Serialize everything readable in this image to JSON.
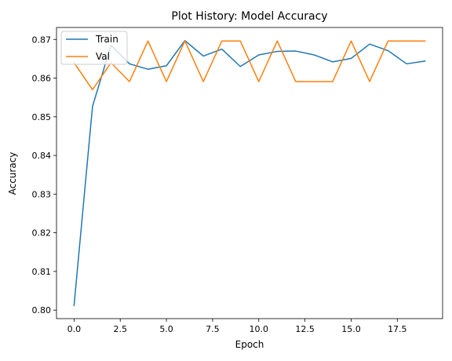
{
  "chart_data": {
    "type": "line",
    "title": "Plot History: Model Accuracy",
    "xlabel": "Epoch",
    "ylabel": "Accuracy",
    "xlim": [
      -0.95,
      19.95
    ],
    "ylim": [
      0.7978,
      0.8731
    ],
    "xticks": [
      0.0,
      2.5,
      5.0,
      7.5,
      10.0,
      12.5,
      15.0,
      17.5
    ],
    "xtick_labels": [
      "0.0",
      "2.5",
      "5.0",
      "7.5",
      "10.0",
      "12.5",
      "15.0",
      "17.5"
    ],
    "yticks": [
      0.8,
      0.81,
      0.82,
      0.83,
      0.84,
      0.85,
      0.86,
      0.87
    ],
    "ytick_labels": [
      "0.80",
      "0.81",
      "0.82",
      "0.83",
      "0.84",
      "0.85",
      "0.86",
      "0.87"
    ],
    "grid": false,
    "legend": "top-left",
    "x": [
      0,
      1,
      2,
      3,
      4,
      5,
      6,
      7,
      8,
      9,
      10,
      11,
      12,
      13,
      14,
      15,
      16,
      17,
      18,
      19
    ],
    "series": [
      {
        "name": "Train",
        "color": "#1f77b4",
        "values": [
          0.8012,
          0.8527,
          0.8685,
          0.8637,
          0.8623,
          0.8632,
          0.8697,
          0.8657,
          0.8675,
          0.863,
          0.866,
          0.8669,
          0.867,
          0.866,
          0.8642,
          0.8651,
          0.8688,
          0.8671,
          0.8637,
          0.8644
        ]
      },
      {
        "name": "Val",
        "color": "#ff7f0e",
        "values": [
          0.864,
          0.857,
          0.864,
          0.8591,
          0.8696,
          0.8591,
          0.8696,
          0.8591,
          0.8696,
          0.8696,
          0.8591,
          0.8696,
          0.8591,
          0.8591,
          0.8591,
          0.8696,
          0.8591,
          0.8696,
          0.8696,
          0.8696
        ]
      }
    ]
  }
}
